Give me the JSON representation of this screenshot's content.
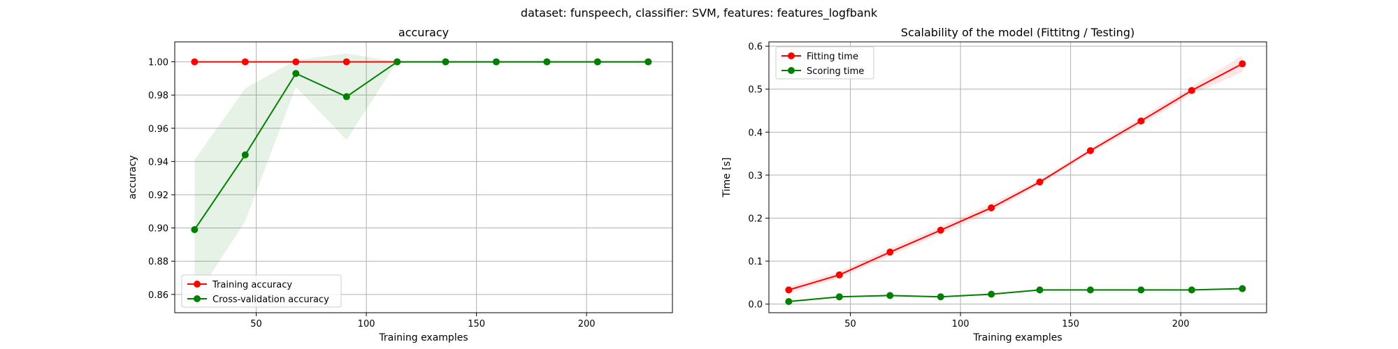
{
  "figure": {
    "suptitle": "dataset: funspeech, classifier: SVM, features: features_logfbank"
  },
  "chart_data": [
    {
      "type": "line",
      "title": "accuracy",
      "xlabel": "Training examples",
      "ylabel": "accuracy",
      "xlim": [
        13,
        239
      ],
      "ylim": [
        0.849,
        1.012
      ],
      "xticks": [
        50,
        100,
        150,
        200
      ],
      "yticks": [
        0.86,
        0.88,
        0.9,
        0.92,
        0.94,
        0.96,
        0.98,
        1.0
      ],
      "ytick_labels": [
        "0.86",
        "0.88",
        "0.90",
        "0.92",
        "0.94",
        "0.96",
        "0.98",
        "1.00"
      ],
      "xtick_labels": [
        "50",
        "100",
        "150",
        "200"
      ],
      "grid": true,
      "legend_position": "lower-left",
      "x": [
        22,
        45,
        68,
        91,
        114,
        136,
        159,
        182,
        205,
        228
      ],
      "series": [
        {
          "name": "Training accuracy",
          "color": "#ff0000",
          "values": [
            1.0,
            1.0,
            1.0,
            1.0,
            1.0,
            1.0,
            1.0,
            1.0,
            1.0,
            1.0
          ],
          "band_lower": [
            1.0,
            1.0,
            1.0,
            1.0,
            1.0,
            1.0,
            1.0,
            1.0,
            1.0,
            1.0
          ],
          "band_upper": [
            1.0,
            1.0,
            1.0,
            1.0,
            1.0,
            1.0,
            1.0,
            1.0,
            1.0,
            1.0
          ],
          "band_color": "#ff0000"
        },
        {
          "name": "Cross-validation accuracy",
          "color": "#008000",
          "values": [
            0.899,
            0.944,
            0.993,
            0.979,
            1.0,
            1.0,
            1.0,
            1.0,
            1.0,
            1.0
          ],
          "band_lower": [
            0.857,
            0.904,
            0.985,
            0.953,
            1.0,
            1.0,
            1.0,
            1.0,
            1.0,
            1.0
          ],
          "band_upper": [
            0.941,
            0.984,
            1.001,
            1.005,
            1.0,
            1.0,
            1.0,
            1.0,
            1.0,
            1.0
          ],
          "band_color": "#008000"
        }
      ]
    },
    {
      "type": "line",
      "title": "Scalability of the model (Fittitng / Testing)",
      "xlabel": "Training examples",
      "ylabel": "Time [s]",
      "xlim": [
        13,
        239
      ],
      "ylim": [
        -0.02,
        0.61
      ],
      "xticks": [
        50,
        100,
        150,
        200
      ],
      "yticks": [
        0.0,
        0.1,
        0.2,
        0.3,
        0.4,
        0.5,
        0.6
      ],
      "ytick_labels": [
        "0.0",
        "0.1",
        "0.2",
        "0.3",
        "0.4",
        "0.5",
        "0.6"
      ],
      "xtick_labels": [
        "50",
        "100",
        "150",
        "200"
      ],
      "grid": true,
      "legend_position": "upper-left",
      "x": [
        22,
        45,
        68,
        91,
        114,
        136,
        159,
        182,
        205,
        228
      ],
      "series": [
        {
          "name": "Fitting time",
          "color": "#ff0000",
          "values": [
            0.033,
            0.068,
            0.121,
            0.172,
            0.224,
            0.284,
            0.357,
            0.426,
            0.497,
            0.559
          ],
          "band_lower": [
            0.025,
            0.06,
            0.113,
            0.163,
            0.215,
            0.278,
            0.351,
            0.417,
            0.488,
            0.54
          ],
          "band_upper": [
            0.041,
            0.076,
            0.129,
            0.181,
            0.233,
            0.29,
            0.363,
            0.435,
            0.506,
            0.578
          ],
          "band_color": "#ff0000"
        },
        {
          "name": "Scoring time",
          "color": "#008000",
          "values": [
            0.006,
            0.017,
            0.02,
            0.017,
            0.023,
            0.033,
            0.033,
            0.033,
            0.033,
            0.036
          ],
          "band_lower": [
            0.004,
            0.015,
            0.018,
            0.015,
            0.021,
            0.031,
            0.031,
            0.031,
            0.031,
            0.034
          ],
          "band_upper": [
            0.008,
            0.019,
            0.022,
            0.019,
            0.025,
            0.035,
            0.035,
            0.035,
            0.035,
            0.038
          ],
          "band_color": "#008000"
        }
      ]
    }
  ]
}
